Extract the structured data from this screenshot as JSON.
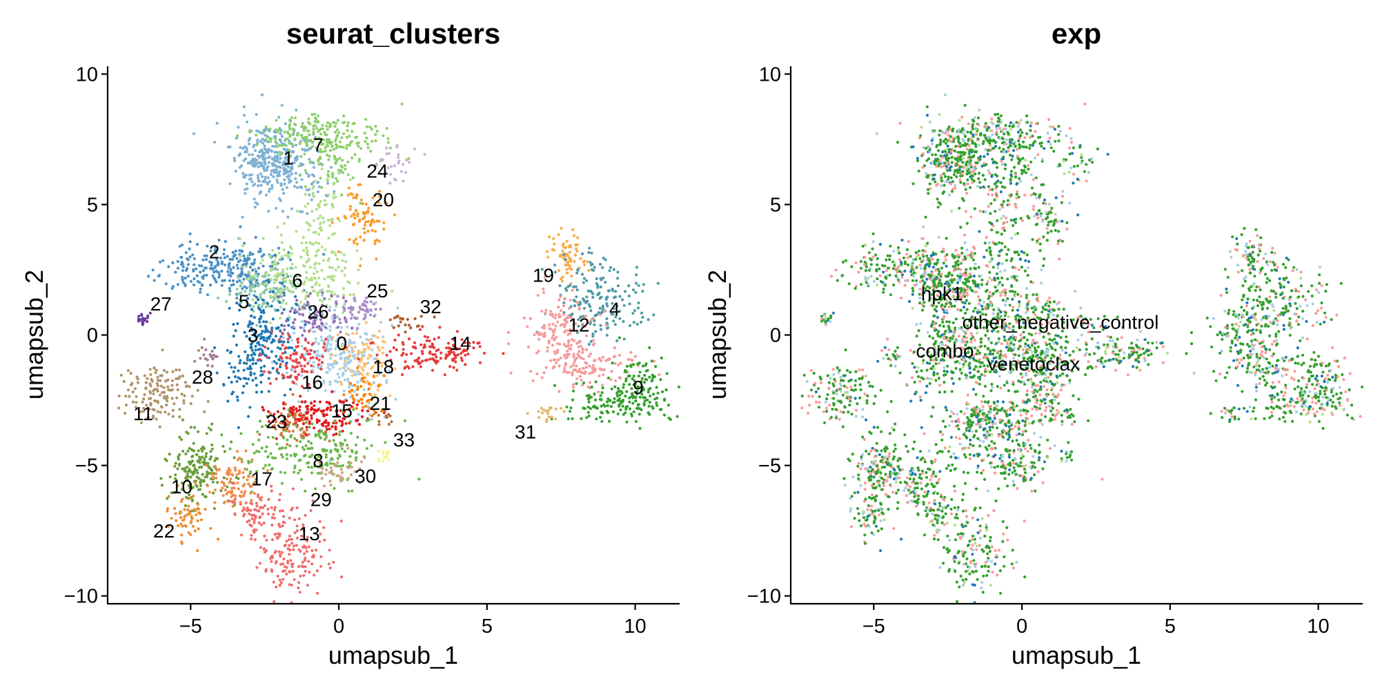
{
  "chart_data": [
    {
      "type": "scatter",
      "title": "seurat_clusters",
      "xlabel": "umapsub_1",
      "ylabel": "umapsub_2",
      "xlim": [
        -7.8,
        11.5
      ],
      "ylim": [
        -10.3,
        10.3
      ],
      "xticks": [
        -5,
        0,
        5,
        10
      ],
      "yticks": [
        -10,
        -5,
        0,
        5,
        10
      ],
      "xtick_labels": [
        "−5",
        "0",
        "5",
        "10"
      ],
      "ytick_labels": [
        "−10",
        "−5",
        "0",
        "5",
        "10"
      ],
      "grid": false,
      "legend": "none",
      "labels": [
        {
          "text": "0",
          "x": 0.1,
          "y": -0.3,
          "color": "#a6cee3"
        },
        {
          "text": "1",
          "x": -1.7,
          "y": 6.8,
          "color": "#7fb1d3"
        },
        {
          "text": "2",
          "x": -4.2,
          "y": 3.2,
          "color": "#4a90c4"
        },
        {
          "text": "3",
          "x": -2.9,
          "y": 0.0,
          "color": "#1f78b4"
        },
        {
          "text": "4",
          "x": 9.3,
          "y": 1.0,
          "color": "#4c9aa6"
        },
        {
          "text": "5",
          "x": -3.2,
          "y": 1.3,
          "color": "#8cc9a8"
        },
        {
          "text": "6",
          "x": -1.4,
          "y": 2.1,
          "color": "#b2df8a"
        },
        {
          "text": "7",
          "x": -0.7,
          "y": 7.3,
          "color": "#8ccf6a"
        },
        {
          "text": "8",
          "x": -0.7,
          "y": -4.8,
          "color": "#6bb84a"
        },
        {
          "text": "9",
          "x": 10.1,
          "y": -2.0,
          "color": "#33a02c"
        },
        {
          "text": "10",
          "x": -5.3,
          "y": -5.8,
          "color": "#6a9e3a"
        },
        {
          "text": "11",
          "x": -6.6,
          "y": -3.0,
          "color": "#b09468"
        },
        {
          "text": "12",
          "x": 8.1,
          "y": 0.4,
          "color": "#f59a9a"
        },
        {
          "text": "13",
          "x": -1.0,
          "y": -7.6,
          "color": "#f06e6e"
        },
        {
          "text": "14",
          "x": 4.1,
          "y": -0.3,
          "color": "#e63a3a"
        },
        {
          "text": "15",
          "x": 0.1,
          "y": -2.9,
          "color": "#e31a1c"
        },
        {
          "text": "16",
          "x": -0.9,
          "y": -1.8,
          "color": "#e8474a"
        },
        {
          "text": "17",
          "x": -2.6,
          "y": -5.5,
          "color": "#f08c4c"
        },
        {
          "text": "18",
          "x": 1.5,
          "y": -1.2,
          "color": "#fdbf6f"
        },
        {
          "text": "19",
          "x": 6.9,
          "y": 2.3,
          "color": "#fbab48"
        },
        {
          "text": "20",
          "x": 1.5,
          "y": 5.2,
          "color": "#fb9a29"
        },
        {
          "text": "21",
          "x": 1.4,
          "y": -2.6,
          "color": "#ff7f00"
        },
        {
          "text": "22",
          "x": -5.9,
          "y": -7.5,
          "color": "#f08c30"
        },
        {
          "text": "23",
          "x": -2.1,
          "y": -3.3,
          "color": "#d07a3e"
        },
        {
          "text": "24",
          "x": 1.3,
          "y": 6.3,
          "color": "#cab2d6"
        },
        {
          "text": "25",
          "x": 1.3,
          "y": 1.7,
          "color": "#a88cc8"
        },
        {
          "text": "26",
          "x": -0.7,
          "y": 0.9,
          "color": "#9270b8"
        },
        {
          "text": "27",
          "x": -6.0,
          "y": 1.2,
          "color": "#6a3d9a"
        },
        {
          "text": "28",
          "x": -4.6,
          "y": -1.6,
          "color": "#a07c96"
        },
        {
          "text": "29",
          "x": -0.6,
          "y": -6.3,
          "color": "#c8a882"
        },
        {
          "text": "30",
          "x": 0.9,
          "y": -5.4,
          "color": "#ffff99"
        },
        {
          "text": "31",
          "x": 6.3,
          "y": -3.7,
          "color": "#e0b86a"
        },
        {
          "text": "32",
          "x": 3.1,
          "y": 1.1,
          "color": "#b15928"
        },
        {
          "text": "33",
          "x": 2.2,
          "y": -4.0,
          "color": "#b86c30"
        }
      ]
    },
    {
      "type": "scatter",
      "title": "exp",
      "xlabel": "umapsub_1",
      "ylabel": "umapsub_2",
      "xlim": [
        -7.8,
        11.5
      ],
      "ylim": [
        -10.3,
        10.3
      ],
      "xticks": [
        -5,
        0,
        5,
        10
      ],
      "yticks": [
        -10,
        -5,
        0,
        5,
        10
      ],
      "xtick_labels": [
        "−5",
        "0",
        "5",
        "10"
      ],
      "ytick_labels": [
        "−10",
        "−5",
        "0",
        "5",
        "10"
      ],
      "grid": false,
      "legend": "none",
      "labels": [
        {
          "text": "hpk1",
          "x": -2.7,
          "y": 1.6,
          "color": "#1f78b4"
        },
        {
          "text": "other_negative_control",
          "x": 1.3,
          "y": 0.5,
          "color": "#33a02c"
        },
        {
          "text": "combo",
          "x": -2.6,
          "y": -0.6,
          "color": "#fb9a99"
        },
        {
          "text": "venetoclax",
          "x": 0.4,
          "y": -1.1,
          "color": "#a6cee3"
        }
      ]
    }
  ],
  "palettes": {
    "exp_colors": [
      "#33a02c",
      "#fb9a99",
      "#a6cee3",
      "#1f78b4",
      "#b2df8a"
    ]
  }
}
